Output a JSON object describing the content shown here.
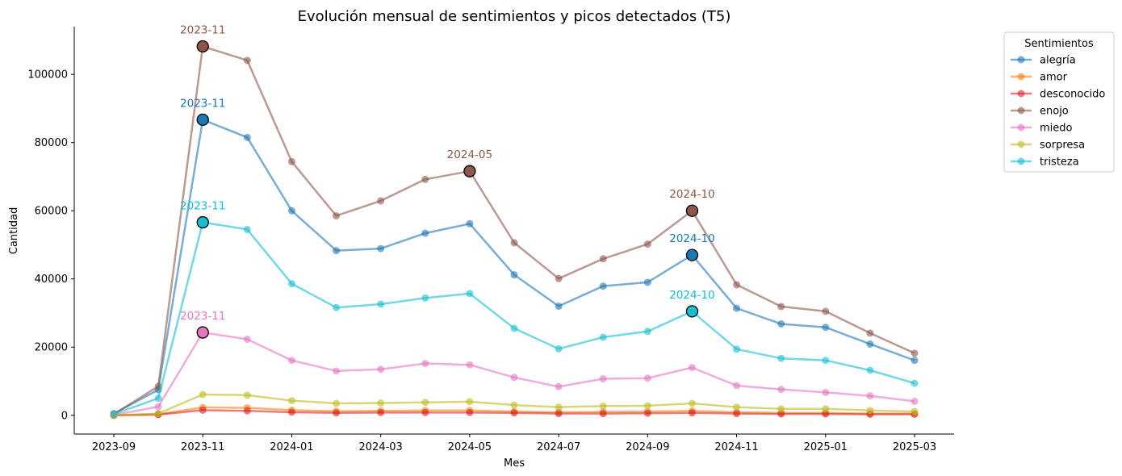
{
  "chart_data": {
    "type": "line",
    "title": "Evolución mensual de sentimientos y picos detectados (T5)",
    "xlabel": "Mes",
    "ylabel": "Cantidad",
    "x": [
      "2023-09",
      "2023-10",
      "2023-11",
      "2023-12",
      "2024-01",
      "2024-02",
      "2024-03",
      "2024-04",
      "2024-05",
      "2024-06",
      "2024-07",
      "2024-08",
      "2024-09",
      "2024-10",
      "2024-11",
      "2024-12",
      "2025-01",
      "2025-02",
      "2025-03"
    ],
    "x_ticks": [
      "2023-09",
      "2023-11",
      "2024-01",
      "2024-03",
      "2024-05",
      "2024-07",
      "2024-09",
      "2024-11",
      "2025-01",
      "2025-03"
    ],
    "y_ticks": [
      0,
      20000,
      40000,
      60000,
      80000,
      100000
    ],
    "ylim": [
      -5500,
      114000
    ],
    "grid": false,
    "legend": {
      "title": "Sentimientos",
      "placement": "outside-top-right"
    },
    "series": [
      {
        "name": "alegría",
        "color": "#1f77b4",
        "values": [
          500,
          7500,
          86700,
          81500,
          60000,
          48300,
          48900,
          53400,
          56200,
          41200,
          32000,
          37900,
          39000,
          47000,
          31400,
          26800,
          25800,
          20900,
          16100
        ]
      },
      {
        "name": "amor",
        "color": "#ff7f0e",
        "values": [
          0,
          300,
          2300,
          2200,
          1500,
          1200,
          1300,
          1400,
          1400,
          1100,
          900,
          1000,
          1100,
          1300,
          900,
          700,
          700,
          500,
          500
        ]
      },
      {
        "name": "desconocido",
        "color": "#d62728",
        "values": [
          0,
          200,
          1500,
          1300,
          900,
          700,
          800,
          800,
          800,
          700,
          500,
          500,
          600,
          700,
          500,
          400,
          400,
          300,
          300
        ]
      },
      {
        "name": "enojo",
        "color": "#8c564b",
        "values": [
          300,
          8500,
          108200,
          104100,
          74400,
          58500,
          62900,
          69200,
          71600,
          50600,
          40100,
          45900,
          50200,
          60000,
          38300,
          31900,
          30500,
          24100,
          18200
        ]
      },
      {
        "name": "miedo",
        "color": "#e377c2",
        "values": [
          100,
          2500,
          24300,
          22300,
          16100,
          13000,
          13500,
          15200,
          14800,
          11100,
          8400,
          10700,
          10900,
          14000,
          8700,
          7600,
          6700,
          5700,
          4100
        ]
      },
      {
        "name": "sorpresa",
        "color": "#bcbd22",
        "values": [
          0,
          500,
          6100,
          5900,
          4300,
          3500,
          3600,
          3800,
          4000,
          3000,
          2400,
          2700,
          2800,
          3500,
          2400,
          1900,
          1900,
          1400,
          1100
        ]
      },
      {
        "name": "tristeza",
        "color": "#17becf",
        "values": [
          300,
          5000,
          56600,
          54500,
          38600,
          31600,
          32600,
          34400,
          35700,
          25500,
          19500,
          22900,
          24600,
          30500,
          19400,
          16700,
          16100,
          13200,
          9400
        ]
      }
    ],
    "peaks": [
      {
        "series": "enojo",
        "x": "2023-11",
        "y": 108200,
        "label": "2023-11"
      },
      {
        "series": "enojo",
        "x": "2024-05",
        "y": 71600,
        "label": "2024-05"
      },
      {
        "series": "enojo",
        "x": "2024-10",
        "y": 60000,
        "label": "2024-10"
      },
      {
        "series": "alegría",
        "x": "2023-11",
        "y": 86700,
        "label": "2023-11"
      },
      {
        "series": "alegría",
        "x": "2024-10",
        "y": 47000,
        "label": "2024-10"
      },
      {
        "series": "tristeza",
        "x": "2023-11",
        "y": 56600,
        "label": "2023-11"
      },
      {
        "series": "tristeza",
        "x": "2024-10",
        "y": 30500,
        "label": "2024-10"
      },
      {
        "series": "miedo",
        "x": "2023-11",
        "y": 24300,
        "label": "2023-11"
      }
    ]
  }
}
